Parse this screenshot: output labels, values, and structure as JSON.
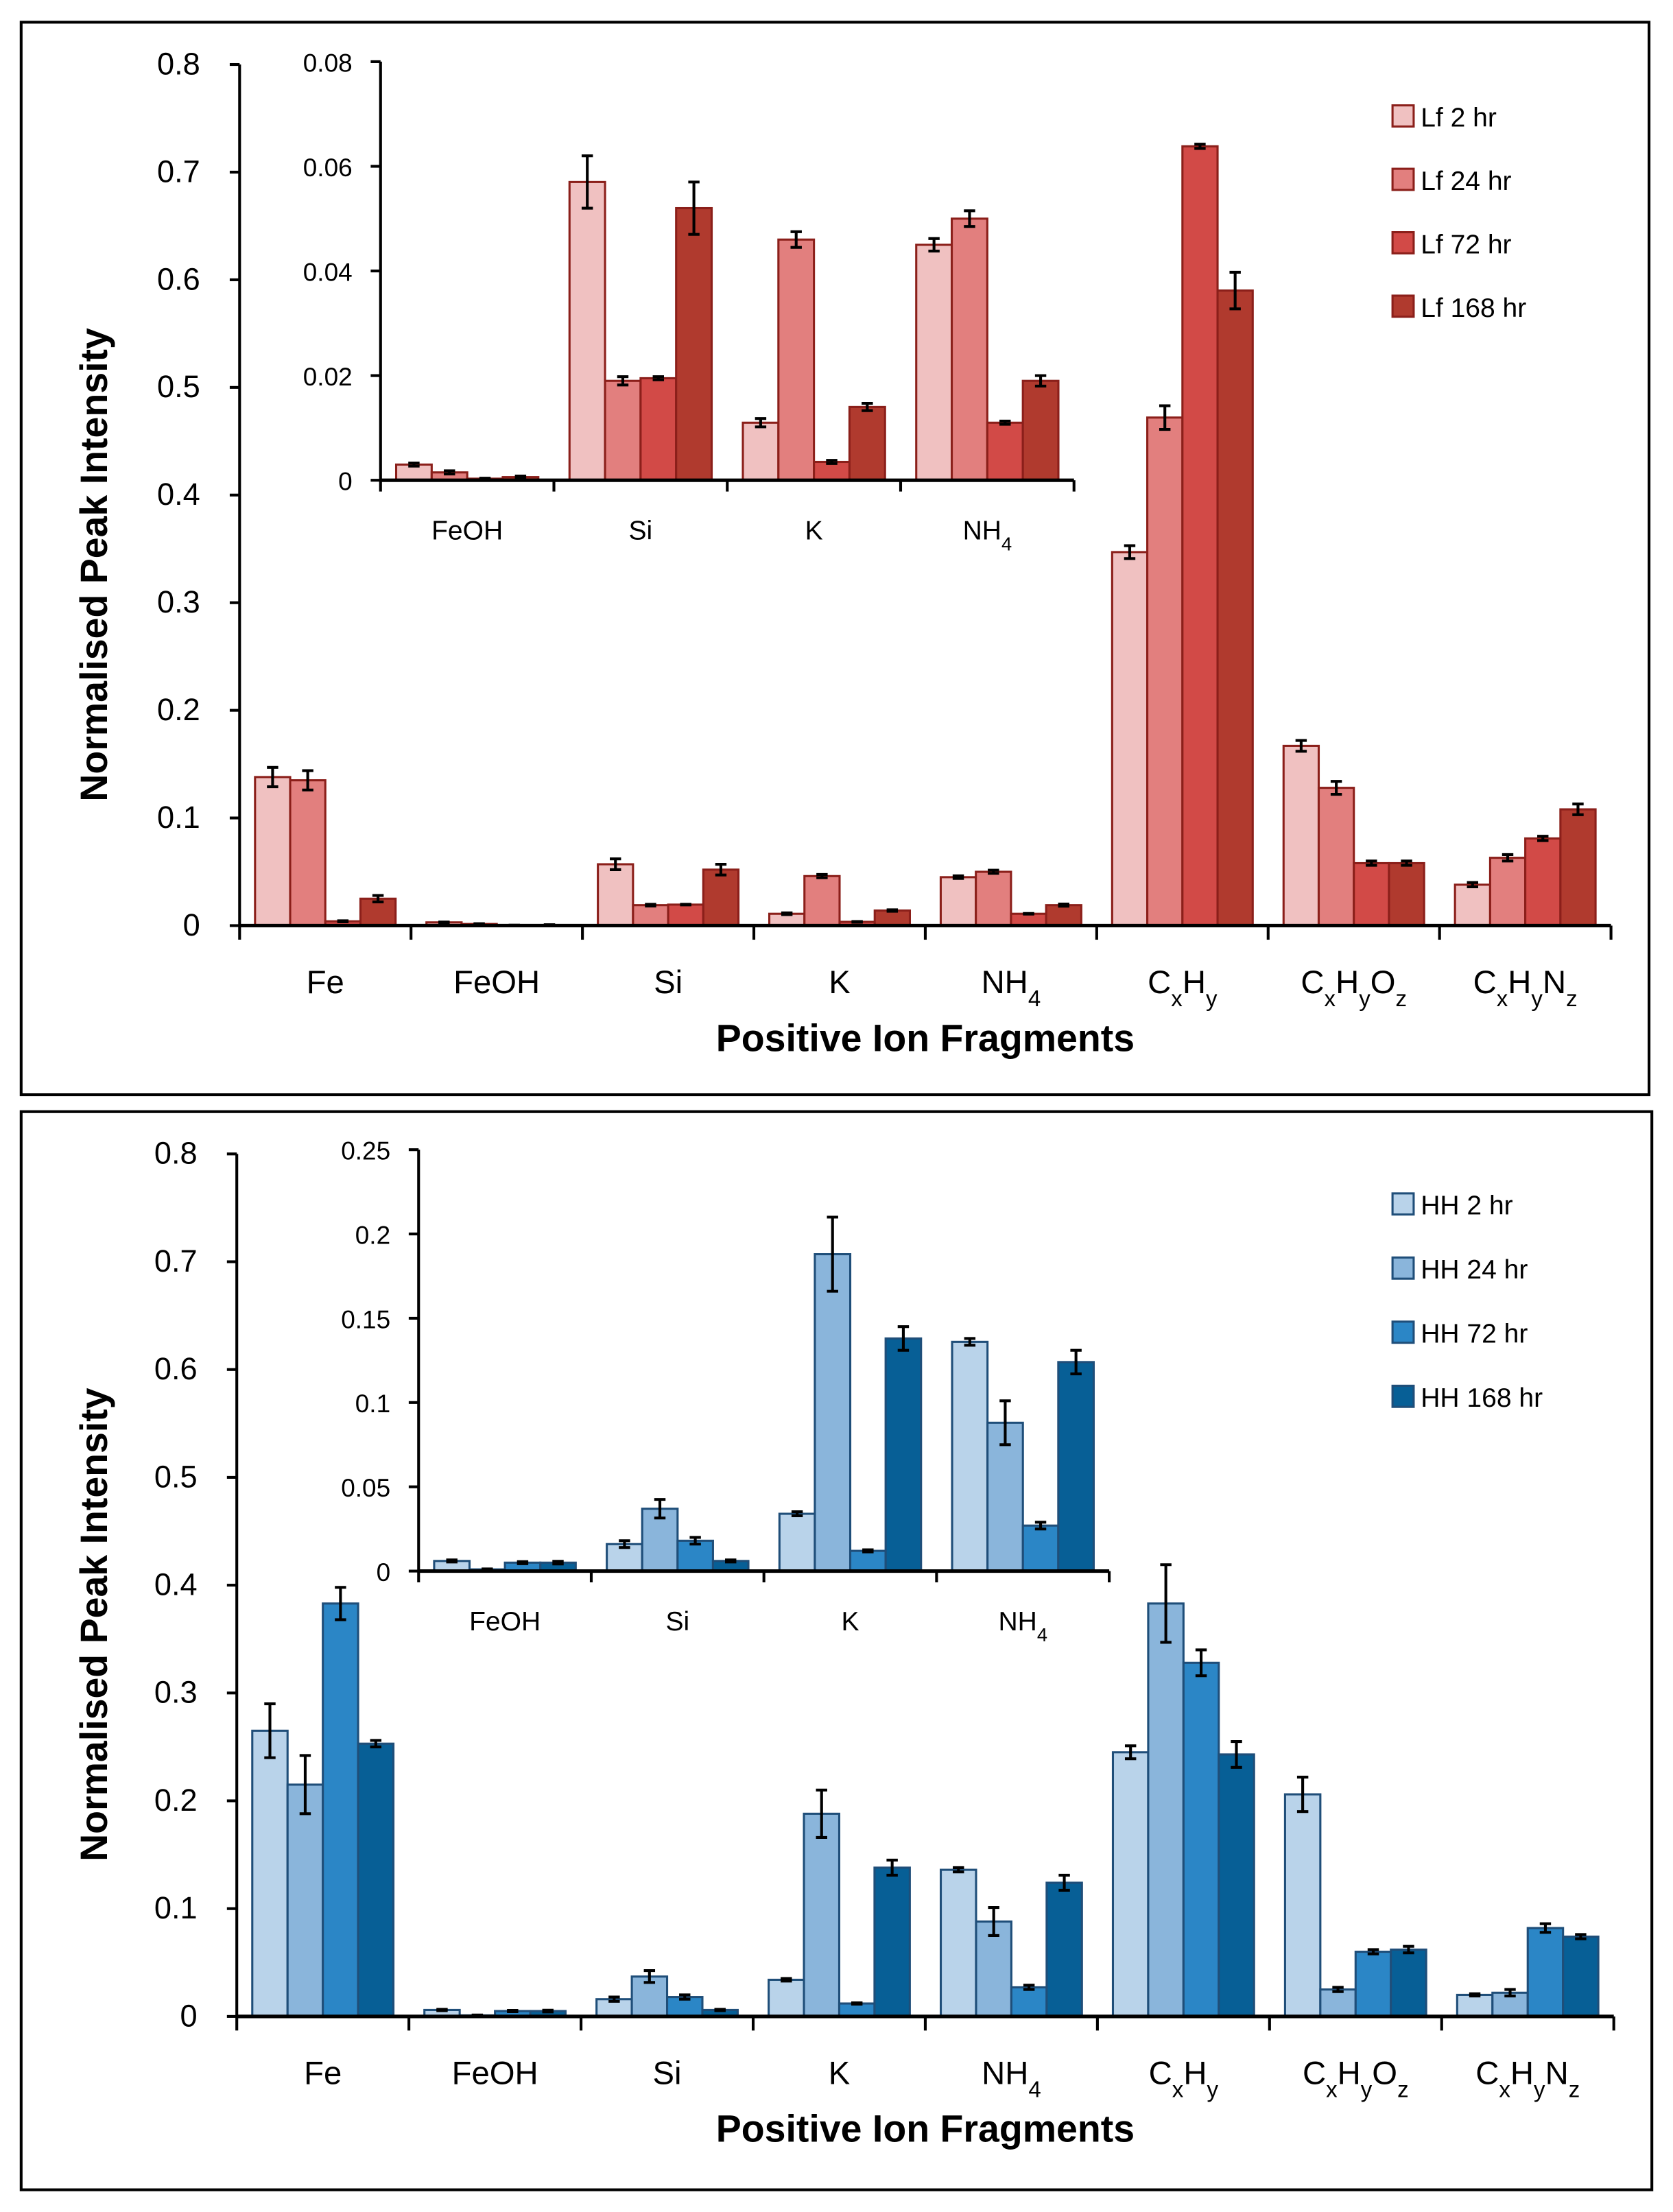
{
  "chart_data": [
    {
      "type": "bar",
      "panel": "top",
      "xlabel": "Positive Ion Fragments",
      "ylabel": "Normalised Peak Intensity",
      "ylim": [
        0,
        0.8
      ],
      "yticks": [
        "0",
        "0.1",
        "0.2",
        "0.3",
        "0.4",
        "0.5",
        "0.6",
        "0.7",
        "0.8"
      ],
      "categories": [
        "Fe",
        "FeOH",
        "Si",
        "K",
        "NH4",
        "CxHy",
        "CxHyOz",
        "CxHyNz"
      ],
      "legend_position": "top-right",
      "colors": [
        "#F0C1C1",
        "#E27F7E",
        "#D24A47",
        "#B03A2E"
      ],
      "edge_color": "#8B1F1A",
      "series": [
        {
          "name": "Lf 2 hr",
          "values": [
            0.138,
            0.003,
            0.057,
            0.011,
            0.045,
            0.347,
            0.167,
            0.038
          ],
          "errors": [
            0.009,
            0.0003,
            0.005,
            0.0008,
            0.0012,
            0.006,
            0.005,
            0.002
          ]
        },
        {
          "name": "Lf 24 hr",
          "values": [
            0.135,
            0.0015,
            0.019,
            0.046,
            0.05,
            0.472,
            0.128,
            0.063
          ],
          "errors": [
            0.009,
            0.0003,
            0.0008,
            0.0015,
            0.0015,
            0.011,
            0.006,
            0.003
          ]
        },
        {
          "name": "Lf 72 hr",
          "values": [
            0.004,
            0.0003,
            0.0195,
            0.0035,
            0.011,
            0.724,
            0.058,
            0.081
          ],
          "errors": [
            0.0005,
            0.0001,
            0.0003,
            0.0003,
            0.0003,
            0.002,
            0.002,
            0.002
          ]
        },
        {
          "name": "Lf 168 hr",
          "values": [
            0.025,
            0.0006,
            0.052,
            0.014,
            0.019,
            0.59,
            0.058,
            0.108
          ],
          "errors": [
            0.003,
            0.0002,
            0.005,
            0.0007,
            0.001,
            0.017,
            0.002,
            0.005
          ]
        }
      ],
      "inset": {
        "categories": [
          "FeOH",
          "Si",
          "K",
          "NH4"
        ],
        "ylim": [
          0,
          0.08
        ],
        "yticks": [
          "0",
          "0.02",
          "0.04",
          "0.06",
          "0.08"
        ]
      }
    },
    {
      "type": "bar",
      "panel": "bottom",
      "xlabel": "Positive Ion Fragments",
      "ylabel": "Normalised Peak Intensity",
      "ylim": [
        0,
        0.8
      ],
      "yticks": [
        "0",
        "0.1",
        "0.2",
        "0.3",
        "0.4",
        "0.5",
        "0.6",
        "0.7",
        "0.8"
      ],
      "categories": [
        "Fe",
        "FeOH",
        "Si",
        "K",
        "NH4",
        "CxHy",
        "CxHyOz",
        "CxHyNz"
      ],
      "legend_position": "top-right",
      "colors": [
        "#B9D3EA",
        "#8AB5DB",
        "#2B86C6",
        "#075F96"
      ],
      "edge_color": "#1F4E79",
      "series": [
        {
          "name": "HH 2 hr",
          "values": [
            0.265,
            0.006,
            0.016,
            0.034,
            0.136,
            0.245,
            0.206,
            0.02
          ],
          "errors": [
            0.025,
            0.0006,
            0.002,
            0.0012,
            0.002,
            0.006,
            0.016,
            0.001
          ]
        },
        {
          "name": "HH 24 hr",
          "values": [
            0.215,
            0.001,
            0.037,
            0.188,
            0.088,
            0.383,
            0.025,
            0.022
          ],
          "errors": [
            0.027,
            0.0003,
            0.0055,
            0.022,
            0.013,
            0.036,
            0.002,
            0.003
          ]
        },
        {
          "name": "HH 72 hr",
          "values": [
            0.383,
            0.005,
            0.018,
            0.012,
            0.027,
            0.328,
            0.06,
            0.082
          ],
          "errors": [
            0.015,
            0.0006,
            0.002,
            0.0006,
            0.002,
            0.012,
            0.002,
            0.004
          ]
        },
        {
          "name": "HH 168 hr",
          "values": [
            0.253,
            0.005,
            0.006,
            0.138,
            0.124,
            0.243,
            0.062,
            0.074
          ],
          "errors": [
            0.003,
            0.0008,
            0.0006,
            0.007,
            0.007,
            0.012,
            0.003,
            0.002
          ]
        }
      ],
      "inset": {
        "categories": [
          "FeOH",
          "Si",
          "K",
          "NH4"
        ],
        "ylim": [
          0,
          0.25
        ],
        "yticks": [
          "0",
          "0.05",
          "0.1",
          "0.15",
          "0.2",
          "0.25"
        ]
      }
    }
  ]
}
